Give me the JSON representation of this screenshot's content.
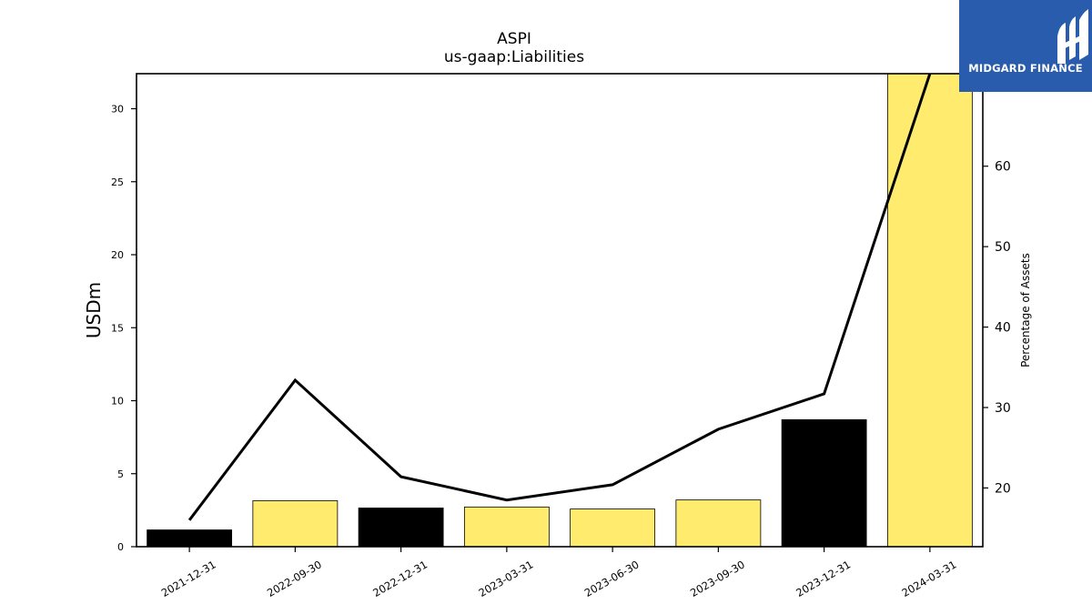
{
  "brand": {
    "name": "MIDGARD FINANCE",
    "bg_color": "#2a5cad"
  },
  "chart_data": {
    "type": "bar",
    "title": "ASPI",
    "subtitle": "us-gaap:Liabilities",
    "ylabel": "USDm",
    "y2label": "Percentage of Assets",
    "ylim": [
      0,
      32.4
    ],
    "y2lim": [
      12.7,
      71.5
    ],
    "yticks": [
      0,
      5,
      10,
      15,
      20,
      25,
      30
    ],
    "y2ticks": [
      20,
      30,
      40,
      50,
      60
    ],
    "categories": [
      "2021-12-31",
      "2022-09-30",
      "2022-12-31",
      "2023-03-31",
      "2023-06-30",
      "2023-09-30",
      "2023-12-31",
      "2024-03-31"
    ],
    "series": [
      {
        "type": "bar",
        "values": [
          1.15,
          3.15,
          2.65,
          2.72,
          2.58,
          3.2,
          8.7,
          32.4
        ],
        "colors": [
          "#000000",
          "#ffec6e",
          "#000000",
          "#ffec6e",
          "#ffec6e",
          "#ffec6e",
          "#000000",
          "#ffec6e"
        ]
      },
      {
        "type": "line",
        "axis": "secondary",
        "values": [
          16.0,
          33.4,
          21.4,
          18.5,
          20.4,
          27.3,
          31.7,
          71.5
        ],
        "color": "#000000"
      }
    ],
    "grid": false
  }
}
